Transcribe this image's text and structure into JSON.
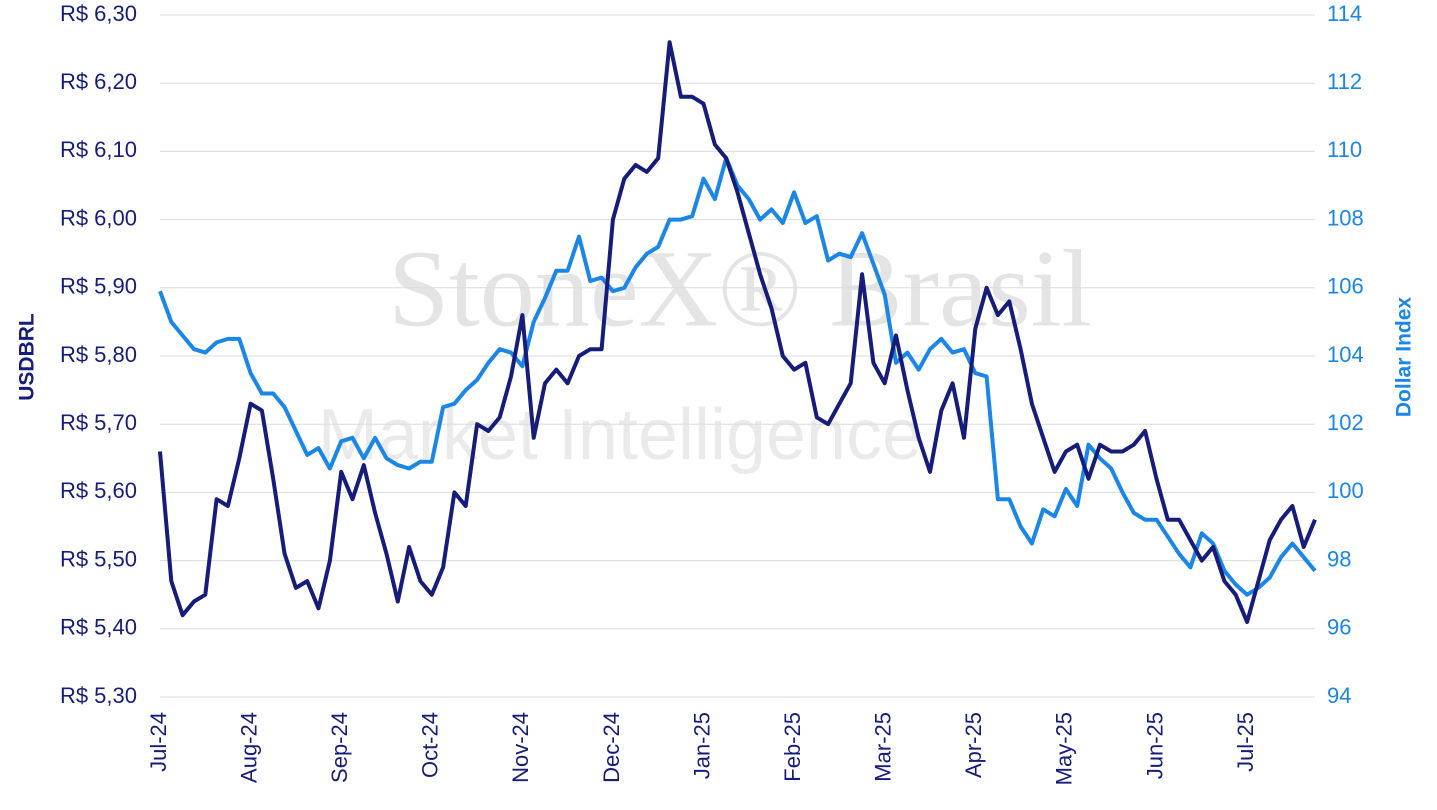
{
  "chart_data": {
    "type": "line",
    "watermark": [
      "StoneX® Brasil",
      "Market Intelligence"
    ],
    "y_label": "USDBRL",
    "y2_label": "Dollar Index",
    "categories": [
      "Jul-24",
      null,
      null,
      null,
      null,
      null,
      null,
      null,
      "Aug-24",
      null,
      null,
      null,
      null,
      null,
      null,
      null,
      "Sep-24",
      null,
      null,
      null,
      null,
      null,
      null,
      null,
      "Oct-24",
      null,
      null,
      null,
      null,
      null,
      null,
      null,
      "Nov-24",
      null,
      null,
      null,
      null,
      null,
      null,
      null,
      "Dec-24",
      null,
      null,
      null,
      null,
      null,
      null,
      null,
      "Jan-25",
      null,
      null,
      null,
      null,
      null,
      null,
      null,
      "Feb-25",
      null,
      null,
      null,
      null,
      null,
      null,
      null,
      "Mar-25",
      null,
      null,
      null,
      null,
      null,
      null,
      null,
      "Apr-25",
      null,
      null,
      null,
      null,
      null,
      null,
      null,
      "May-25",
      null,
      null,
      null,
      null,
      null,
      null,
      null,
      "Jun-25",
      null,
      null,
      null,
      null,
      null,
      null,
      null,
      "Jul-25",
      null,
      null,
      null,
      null,
      null,
      null
    ],
    "series": [
      {
        "name": "USDBRL",
        "color": "#161c7a",
        "axis": "y",
        "values": [
          5.66,
          5.47,
          5.42,
          5.44,
          5.45,
          5.59,
          5.58,
          5.65,
          5.73,
          5.72,
          5.62,
          5.51,
          5.46,
          5.47,
          5.43,
          5.5,
          5.63,
          5.59,
          5.64,
          5.57,
          5.51,
          5.44,
          5.52,
          5.47,
          5.45,
          5.49,
          5.6,
          5.58,
          5.7,
          5.69,
          5.71,
          5.77,
          5.86,
          5.68,
          5.76,
          5.78,
          5.76,
          5.8,
          5.81,
          5.81,
          6.0,
          6.06,
          6.08,
          6.07,
          6.09,
          6.26,
          6.18,
          6.18,
          6.17,
          6.11,
          6.09,
          6.04,
          5.98,
          5.92,
          5.87,
          5.8,
          5.78,
          5.79,
          5.71,
          5.7,
          5.73,
          5.76,
          5.92,
          5.79,
          5.76,
          5.83,
          5.75,
          5.68,
          5.63,
          5.72,
          5.76,
          5.68,
          5.84,
          5.9,
          5.86,
          5.88,
          5.81,
          5.73,
          5.68,
          5.63,
          5.66,
          5.67,
          5.62,
          5.67,
          5.66,
          5.66,
          5.67,
          5.69,
          5.62,
          5.56,
          5.56,
          5.53,
          5.5,
          5.52,
          5.47,
          5.45,
          5.41,
          5.47,
          5.53,
          5.56,
          5.58,
          5.52,
          5.56
        ]
      },
      {
        "name": "Dollar Index",
        "color": "#1a86e8",
        "axis": "y2",
        "values": [
          105.9,
          105.0,
          104.6,
          104.2,
          104.1,
          104.4,
          104.5,
          104.5,
          103.5,
          102.9,
          102.9,
          102.5,
          101.8,
          101.1,
          101.3,
          100.7,
          101.5,
          101.6,
          101.0,
          101.6,
          101.0,
          100.8,
          100.7,
          100.9,
          100.9,
          102.5,
          102.6,
          103.0,
          103.3,
          103.8,
          104.2,
          104.1,
          103.7,
          105.0,
          105.7,
          106.5,
          106.5,
          107.5,
          106.2,
          106.3,
          105.9,
          106.0,
          106.6,
          107.0,
          107.2,
          108.0,
          108.0,
          108.1,
          109.2,
          108.6,
          109.8,
          109.0,
          108.6,
          108.0,
          108.3,
          107.9,
          108.8,
          107.9,
          108.1,
          106.8,
          107.0,
          106.9,
          107.6,
          106.7,
          105.8,
          103.8,
          104.1,
          103.6,
          104.2,
          104.5,
          104.1,
          104.2,
          103.5,
          103.4,
          99.8,
          99.8,
          99.0,
          98.5,
          99.5,
          99.3,
          100.1,
          99.6,
          101.4,
          101.0,
          100.7,
          100.0,
          99.4,
          99.2,
          99.2,
          98.7,
          98.2,
          97.8,
          98.8,
          98.5,
          97.7,
          97.3,
          97.0,
          97.2,
          97.5,
          98.1,
          98.5,
          98.1,
          97.7
        ]
      }
    ],
    "ylim": [
      5.3,
      6.3
    ],
    "yticks": [
      {
        "value": 5.3,
        "label": "R$ 5,30"
      },
      {
        "value": 5.4,
        "label": "R$ 5,40"
      },
      {
        "value": 5.5,
        "label": "R$ 5,50"
      },
      {
        "value": 5.6,
        "label": "R$ 5,60"
      },
      {
        "value": 5.7,
        "label": "R$ 5,70"
      },
      {
        "value": 5.8,
        "label": "R$ 5,80"
      },
      {
        "value": 5.9,
        "label": "R$ 5,90"
      },
      {
        "value": 6.0,
        "label": "R$ 6,00"
      },
      {
        "value": 6.1,
        "label": "R$ 6,10"
      },
      {
        "value": 6.2,
        "label": "R$ 6,20"
      },
      {
        "value": 6.3,
        "label": "R$ 6,30"
      }
    ],
    "y2lim": [
      94,
      114
    ],
    "y2ticks": [
      94,
      96,
      98,
      100,
      102,
      104,
      106,
      108,
      110,
      112,
      114
    ],
    "grid": true
  }
}
